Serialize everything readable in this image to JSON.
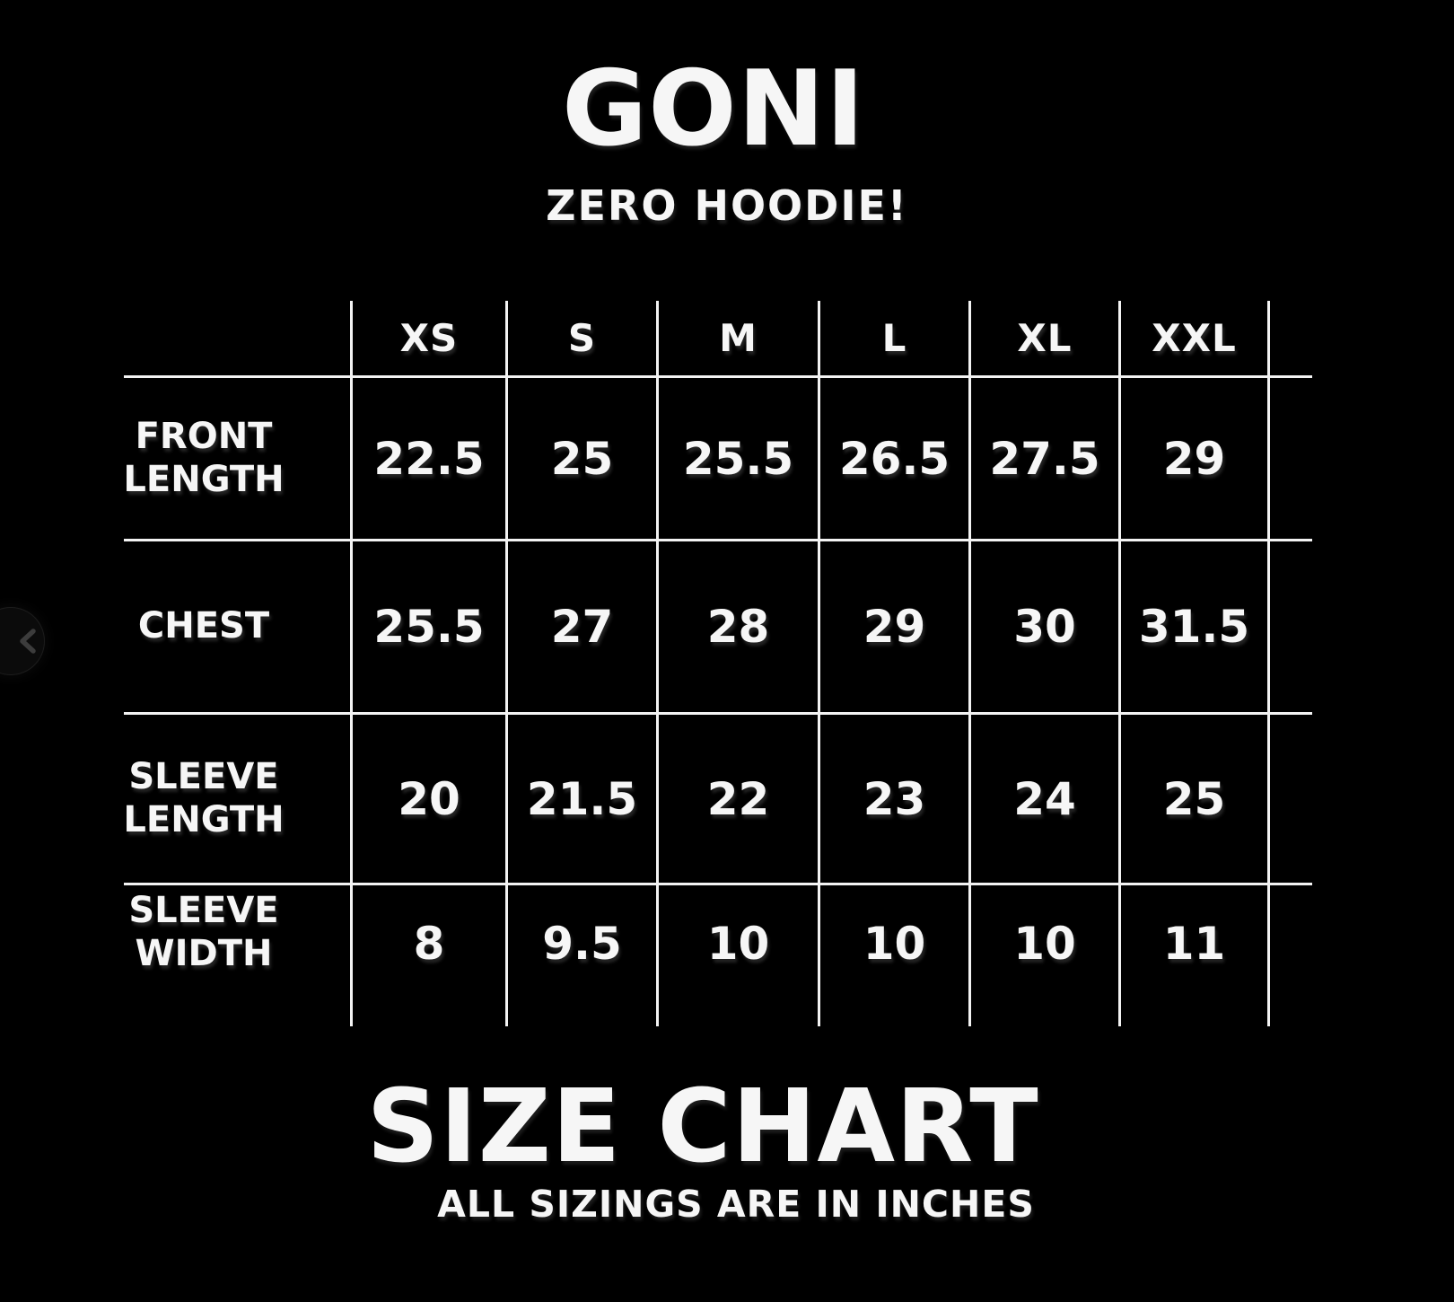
{
  "header": {
    "brand": "GONI",
    "product": "ZERO HOODIE!"
  },
  "footer": {
    "title": "SIZE CHART",
    "note": "ALL SIZINGS ARE IN INCHES"
  },
  "carousel": {
    "prev_icon": "chevron-left"
  },
  "colors": {
    "background": "#000000",
    "text": "#f6f6f6",
    "grid_line": "#f3f3f3",
    "chevron": "#3c3c3c"
  },
  "chart_data": {
    "type": "table",
    "title": "GONI ZERO HOODIE! SIZE CHART",
    "units": "inches",
    "columns": [
      "XS",
      "S",
      "M",
      "L",
      "XL",
      "XXL"
    ],
    "rows": [
      {
        "label": "FRONT LENGTH",
        "values": [
          22.5,
          25,
          25.5,
          26.5,
          27.5,
          29
        ]
      },
      {
        "label": "CHEST",
        "values": [
          25.5,
          27,
          28,
          29,
          30,
          31.5
        ]
      },
      {
        "label": "SLEEVE LENGTH",
        "values": [
          20,
          21.5,
          22,
          23,
          24,
          25
        ]
      },
      {
        "label": "SLEEVE WIDTH",
        "values": [
          8,
          9.5,
          10,
          10,
          10,
          11
        ]
      }
    ],
    "layout": {
      "grid": "internal lines only",
      "legend": "none"
    }
  }
}
